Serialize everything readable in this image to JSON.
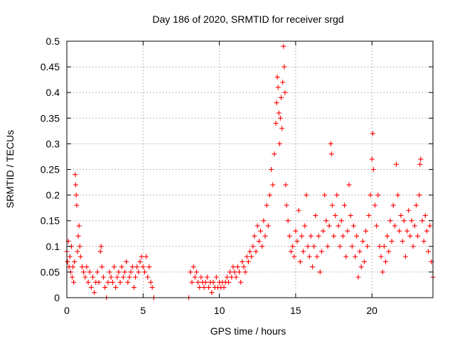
{
  "chart_data": {
    "type": "scatter",
    "title": "Day 186 of 2020, SRMTID for receiver srgd",
    "xlabel": "GPS time / hours",
    "ylabel": "SRMTID / TECUs",
    "xlim": [
      0,
      24
    ],
    "ylim": [
      0,
      0.5
    ],
    "xticks": [
      0,
      5,
      10,
      15,
      20
    ],
    "xtick_labels": [
      "0",
      "5",
      "10",
      "15",
      "20"
    ],
    "yticks": [
      0,
      0.05,
      0.1,
      0.15,
      0.2,
      0.25,
      0.3,
      0.35,
      0.4,
      0.45,
      0.5
    ],
    "ytick_labels": [
      "0",
      "0.05",
      "0.1",
      "0.15",
      "0.2",
      "0.25",
      "0.3",
      "0.35",
      "0.4",
      "0.45",
      "0.5"
    ],
    "grid": true,
    "marker": "+",
    "color": "#ff0000",
    "series": [
      {
        "name": "SRMTID",
        "points": [
          [
            0.0,
            0.09
          ],
          [
            0.05,
            0.07
          ],
          [
            0.1,
            0.11
          ],
          [
            0.15,
            0.06
          ],
          [
            0.2,
            0.08
          ],
          [
            0.25,
            0.05
          ],
          [
            0.3,
            0.1
          ],
          [
            0.35,
            0.04
          ],
          [
            0.4,
            0.06
          ],
          [
            0.45,
            0.03
          ],
          [
            0.5,
            0.07
          ],
          [
            0.55,
            0.24
          ],
          [
            0.58,
            0.22
          ],
          [
            0.62,
            0.2
          ],
          [
            0.65,
            0.18
          ],
          [
            0.7,
            0.09
          ],
          [
            0.75,
            0.12
          ],
          [
            0.8,
            0.14
          ],
          [
            0.85,
            0.1
          ],
          [
            0.9,
            0.08
          ],
          [
            1.0,
            0.06
          ],
          [
            1.1,
            0.05
          ],
          [
            1.2,
            0.04
          ],
          [
            1.3,
            0.06
          ],
          [
            1.4,
            0.03
          ],
          [
            1.5,
            0.05
          ],
          [
            1.6,
            0.02
          ],
          [
            1.7,
            0.04
          ],
          [
            1.8,
            0.01
          ],
          [
            1.9,
            0.03
          ],
          [
            2.0,
            0.05
          ],
          [
            2.1,
            0.03
          ],
          [
            2.2,
            0.09
          ],
          [
            2.25,
            0.1
          ],
          [
            2.3,
            0.06
          ],
          [
            2.4,
            0.04
          ],
          [
            2.5,
            0.02
          ],
          [
            2.6,
            0.0
          ],
          [
            2.7,
            0.03
          ],
          [
            2.8,
            0.05
          ],
          [
            2.9,
            0.04
          ],
          [
            3.0,
            0.03
          ],
          [
            3.1,
            0.06
          ],
          [
            3.2,
            0.02
          ],
          [
            3.3,
            0.04
          ],
          [
            3.4,
            0.05
          ],
          [
            3.5,
            0.03
          ],
          [
            3.6,
            0.06
          ],
          [
            3.7,
            0.04
          ],
          [
            3.8,
            0.05
          ],
          [
            3.9,
            0.07
          ],
          [
            4.0,
            0.03
          ],
          [
            4.1,
            0.04
          ],
          [
            4.2,
            0.05
          ],
          [
            4.3,
            0.06
          ],
          [
            4.4,
            0.02
          ],
          [
            4.5,
            0.04
          ],
          [
            4.6,
            0.06
          ],
          [
            4.7,
            0.05
          ],
          [
            4.8,
            0.07
          ],
          [
            4.9,
            0.08
          ],
          [
            5.0,
            0.06
          ],
          [
            5.1,
            0.05
          ],
          [
            5.2,
            0.08
          ],
          [
            5.3,
            0.04
          ],
          [
            5.4,
            0.06
          ],
          [
            5.5,
            0.03
          ],
          [
            5.6,
            0.02
          ],
          [
            5.7,
            0.0
          ],
          [
            8.0,
            0.0
          ],
          [
            8.1,
            0.05
          ],
          [
            8.2,
            0.03
          ],
          [
            8.3,
            0.06
          ],
          [
            8.4,
            0.04
          ],
          [
            8.5,
            0.05
          ],
          [
            8.6,
            0.03
          ],
          [
            8.7,
            0.02
          ],
          [
            8.8,
            0.04
          ],
          [
            8.9,
            0.03
          ],
          [
            9.0,
            0.02
          ],
          [
            9.1,
            0.03
          ],
          [
            9.2,
            0.04
          ],
          [
            9.3,
            0.02
          ],
          [
            9.4,
            0.03
          ],
          [
            9.5,
            0.01
          ],
          [
            9.6,
            0.03
          ],
          [
            9.7,
            0.02
          ],
          [
            9.8,
            0.04
          ],
          [
            9.9,
            0.02
          ],
          [
            10.0,
            0.03
          ],
          [
            10.1,
            0.02
          ],
          [
            10.2,
            0.03
          ],
          [
            10.3,
            0.02
          ],
          [
            10.4,
            0.03
          ],
          [
            10.5,
            0.04
          ],
          [
            10.6,
            0.03
          ],
          [
            10.7,
            0.05
          ],
          [
            10.8,
            0.04
          ],
          [
            10.9,
            0.06
          ],
          [
            11.0,
            0.05
          ],
          [
            11.1,
            0.04
          ],
          [
            11.2,
            0.06
          ],
          [
            11.3,
            0.05
          ],
          [
            11.4,
            0.03
          ],
          [
            11.5,
            0.07
          ],
          [
            11.6,
            0.06
          ],
          [
            11.7,
            0.05
          ],
          [
            11.8,
            0.08
          ],
          [
            11.9,
            0.07
          ],
          [
            12.0,
            0.09
          ],
          [
            12.1,
            0.08
          ],
          [
            12.2,
            0.1
          ],
          [
            12.3,
            0.12
          ],
          [
            12.4,
            0.09
          ],
          [
            12.5,
            0.14
          ],
          [
            12.6,
            0.11
          ],
          [
            12.7,
            0.13
          ],
          [
            12.8,
            0.1
          ],
          [
            12.9,
            0.15
          ],
          [
            13.0,
            0.12
          ],
          [
            13.1,
            0.18
          ],
          [
            13.2,
            0.14
          ],
          [
            13.3,
            0.2
          ],
          [
            13.4,
            0.25
          ],
          [
            13.5,
            0.22
          ],
          [
            13.6,
            0.28
          ],
          [
            13.7,
            0.34
          ],
          [
            13.75,
            0.38
          ],
          [
            13.8,
            0.43
          ],
          [
            13.85,
            0.41
          ],
          [
            13.9,
            0.36
          ],
          [
            13.95,
            0.3
          ],
          [
            14.0,
            0.35
          ],
          [
            14.05,
            0.39
          ],
          [
            14.1,
            0.33
          ],
          [
            14.15,
            0.42
          ],
          [
            14.2,
            0.49
          ],
          [
            14.25,
            0.45
          ],
          [
            14.3,
            0.4
          ],
          [
            14.35,
            0.22
          ],
          [
            14.4,
            0.18
          ],
          [
            14.5,
            0.15
          ],
          [
            14.6,
            0.12
          ],
          [
            14.7,
            0.09
          ],
          [
            14.8,
            0.1
          ],
          [
            14.9,
            0.08
          ],
          [
            15.0,
            0.13
          ],
          [
            15.1,
            0.11
          ],
          [
            15.2,
            0.17
          ],
          [
            15.3,
            0.07
          ],
          [
            15.4,
            0.12
          ],
          [
            15.5,
            0.09
          ],
          [
            15.6,
            0.14
          ],
          [
            15.7,
            0.2
          ],
          [
            15.8,
            0.1
          ],
          [
            15.9,
            0.08
          ],
          [
            16.0,
            0.12
          ],
          [
            16.1,
            0.06
          ],
          [
            16.2,
            0.1
          ],
          [
            16.3,
            0.16
          ],
          [
            16.4,
            0.08
          ],
          [
            16.5,
            0.12
          ],
          [
            16.6,
            0.05
          ],
          [
            16.7,
            0.09
          ],
          [
            16.8,
            0.13
          ],
          [
            16.9,
            0.2
          ],
          [
            17.0,
            0.15
          ],
          [
            17.1,
            0.1
          ],
          [
            17.2,
            0.14
          ],
          [
            17.3,
            0.3
          ],
          [
            17.35,
            0.28
          ],
          [
            17.4,
            0.18
          ],
          [
            17.5,
            0.12
          ],
          [
            17.6,
            0.16
          ],
          [
            17.7,
            0.2
          ],
          [
            17.8,
            0.14
          ],
          [
            17.9,
            0.1
          ],
          [
            18.0,
            0.15
          ],
          [
            18.1,
            0.12
          ],
          [
            18.2,
            0.18
          ],
          [
            18.3,
            0.08
          ],
          [
            18.4,
            0.13
          ],
          [
            18.5,
            0.22
          ],
          [
            18.6,
            0.16
          ],
          [
            18.7,
            0.1
          ],
          [
            18.8,
            0.14
          ],
          [
            18.9,
            0.08
          ],
          [
            19.0,
            0.12
          ],
          [
            19.1,
            0.04
          ],
          [
            19.2,
            0.09
          ],
          [
            19.3,
            0.06
          ],
          [
            19.4,
            0.11
          ],
          [
            19.5,
            0.07
          ],
          [
            19.6,
            0.13
          ],
          [
            19.7,
            0.1
          ],
          [
            19.8,
            0.16
          ],
          [
            19.9,
            0.2
          ],
          [
            20.0,
            0.27
          ],
          [
            20.05,
            0.32
          ],
          [
            20.1,
            0.25
          ],
          [
            20.2,
            0.18
          ],
          [
            20.3,
            0.14
          ],
          [
            20.4,
            0.2
          ],
          [
            20.5,
            0.1
          ],
          [
            20.6,
            0.08
          ],
          [
            20.7,
            0.05
          ],
          [
            20.8,
            0.1
          ],
          [
            20.9,
            0.07
          ],
          [
            21.0,
            0.12
          ],
          [
            21.1,
            0.09
          ],
          [
            21.2,
            0.15
          ],
          [
            21.3,
            0.11
          ],
          [
            21.4,
            0.18
          ],
          [
            21.5,
            0.14
          ],
          [
            21.6,
            0.26
          ],
          [
            21.7,
            0.2
          ],
          [
            21.8,
            0.13
          ],
          [
            21.9,
            0.16
          ],
          [
            22.0,
            0.11
          ],
          [
            22.1,
            0.15
          ],
          [
            22.2,
            0.08
          ],
          [
            22.3,
            0.13
          ],
          [
            22.4,
            0.17
          ],
          [
            22.5,
            0.12
          ],
          [
            22.6,
            0.15
          ],
          [
            22.7,
            0.1
          ],
          [
            22.8,
            0.14
          ],
          [
            22.9,
            0.18
          ],
          [
            23.0,
            0.12
          ],
          [
            23.1,
            0.2
          ],
          [
            23.15,
            0.26
          ],
          [
            23.2,
            0.27
          ],
          [
            23.3,
            0.15
          ],
          [
            23.4,
            0.11
          ],
          [
            23.5,
            0.16
          ],
          [
            23.6,
            0.13
          ],
          [
            23.7,
            0.09
          ],
          [
            23.8,
            0.14
          ],
          [
            23.9,
            0.07
          ],
          [
            24.0,
            0.04
          ]
        ]
      }
    ]
  }
}
